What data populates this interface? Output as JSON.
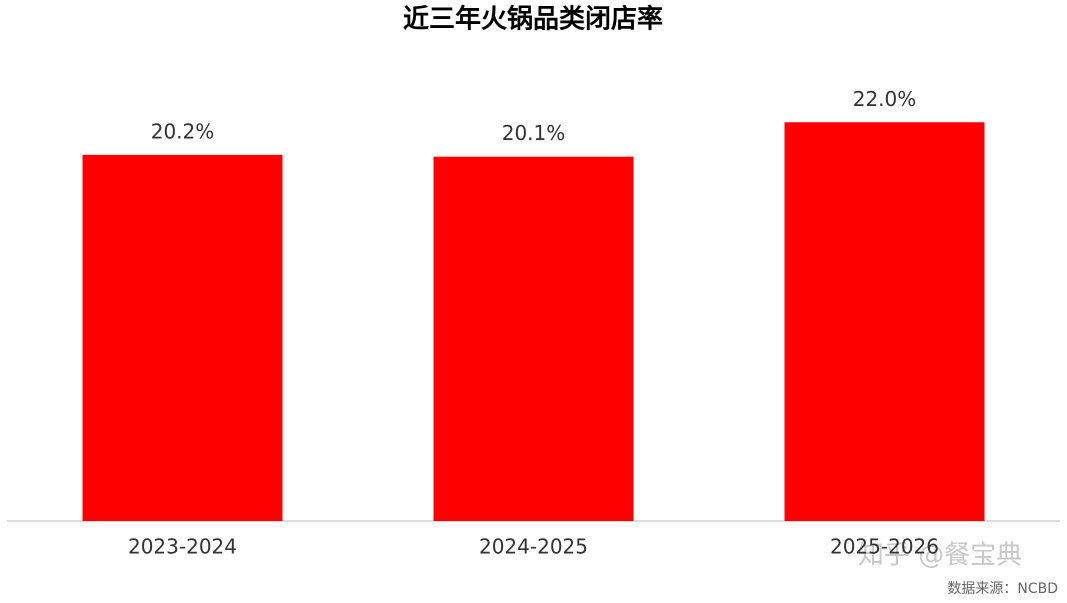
{
  "chart_data": {
    "type": "bar",
    "title": "近三年火锅品类闭店率",
    "categories": [
      "2023-2024",
      "2024-2025",
      "2025-2026"
    ],
    "values": [
      20.2,
      20.1,
      22.0
    ],
    "value_labels": [
      "20.2%",
      "20.1%",
      "22.0%"
    ],
    "color": "#ff0000",
    "ylim": [
      0,
      24
    ],
    "source": "数据来源：NCBD",
    "watermark": "知乎 @餐宝典"
  }
}
